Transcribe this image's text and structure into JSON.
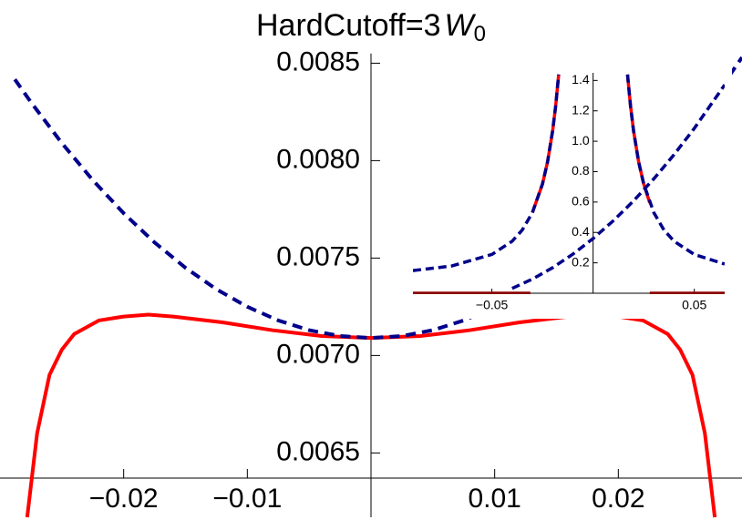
{
  "chart_data": [
    {
      "type": "line",
      "title": {
        "text": "HardCutoff=3",
        "symbol": "W",
        "subscript": "0"
      },
      "xlim": [
        -0.03,
        0.03
      ],
      "ylim": [
        0.00617,
        0.00855
      ],
      "xticks": [
        {
          "value": -0.02,
          "label": "−0.02"
        },
        {
          "value": -0.01,
          "label": "−0.01"
        },
        0.01,
        0.02
      ],
      "yticks": [
        0.0065,
        {
          "value": 0.007,
          "label": "0.0070"
        },
        0.0075,
        {
          "value": 0.008,
          "label": "0.0080"
        },
        0.0085
      ],
      "series": [
        {
          "color": "#ff0000",
          "line_style": "solid",
          "x": [
            -0.0278,
            -0.027,
            -0.026,
            -0.025,
            -0.024,
            -0.022,
            -0.02,
            -0.018,
            -0.016,
            -0.012,
            -0.008,
            -0.004,
            0,
            0.004,
            0.008,
            0.012,
            0.016,
            0.018,
            0.02,
            0.022,
            0.024,
            0.025,
            0.026,
            0.027,
            0.0278
          ],
          "values": [
            0.00617,
            0.0066,
            0.0069,
            0.00703,
            0.00711,
            0.00718,
            0.0072,
            0.00721,
            0.0072,
            0.00717,
            0.00713,
            0.0071,
            0.00709,
            0.0071,
            0.00713,
            0.00717,
            0.0072,
            0.00721,
            0.0072,
            0.00718,
            0.00711,
            0.00703,
            0.0069,
            0.0066,
            0.00617
          ]
        },
        {
          "color": "#00008b",
          "line_style": "dashed",
          "x": [
            -0.0288,
            -0.0275,
            -0.025,
            -0.0225,
            -0.02,
            -0.0175,
            -0.015,
            -0.0125,
            -0.01,
            -0.0075,
            -0.005,
            -0.0025,
            0,
            0.0025,
            0.005,
            0.0075,
            0.01,
            0.0125,
            0.015,
            0.0175,
            0.02,
            0.0225,
            0.025,
            0.0275,
            0.03
          ],
          "values": [
            0.008417,
            0.0083,
            0.00809,
            0.0079,
            0.00773,
            0.00758,
            0.00745,
            0.00734,
            0.00725,
            0.00718,
            0.00713,
            0.0071,
            0.00709,
            0.0071,
            0.00713,
            0.00718,
            0.00725,
            0.00734,
            0.00745,
            0.00758,
            0.00773,
            0.0079,
            0.00809,
            0.0083,
            0.00853
          ]
        }
      ]
    },
    {
      "type": "line",
      "xlim": [
        -0.089,
        0.065
      ],
      "ylim": [
        0,
        1.45
      ],
      "xticks": [
        {
          "value": -0.05,
          "label": "−0.05"
        },
        0.05
      ],
      "yticks": [
        0.2,
        0.4,
        0.6,
        0.8,
        {
          "value": 1,
          "label": "1.0"
        },
        1.2,
        1.4
      ],
      "series": [
        {
          "color": "#8b0000",
          "line_style": "solid",
          "x": [
            -0.089,
            -0.031,
            0,
            0.028,
            0.065
          ],
          "values": [
            0,
            0,
            null,
            0,
            0
          ]
        },
        {
          "color": "#ff0000",
          "line_style": "solid",
          "x": [
            -0.03,
            -0.025,
            -0.0225,
            -0.02,
            -0.0185,
            -0.017,
            0,
            0.017,
            0.0185,
            0.02,
            0.0225,
            0.025,
            0.028
          ],
          "values": [
            0.53,
            0.719,
            0.864,
            1.0675,
            1.231,
            1.439,
            null,
            1.439,
            1.231,
            1.0675,
            0.864,
            0.719,
            0.594
          ]
        },
        {
          "color": "#00008b",
          "line_style": "dashed",
          "x": [
            -0.089,
            -0.07,
            -0.05,
            -0.04,
            -0.035,
            -0.03,
            -0.025,
            -0.0225,
            -0.02,
            -0.0185,
            -0.017,
            0,
            0.017,
            0.0185,
            0.02,
            0.0225,
            0.025,
            0.03,
            0.035,
            0.04,
            0.05,
            0.065
          ],
          "values": [
            0.149,
            0.179,
            0.255,
            0.342,
            0.416,
            0.53,
            0.719,
            0.864,
            1.0675,
            1.231,
            1.439,
            null,
            1.439,
            1.231,
            1.0675,
            0.864,
            0.719,
            0.53,
            0.416,
            0.342,
            0.255,
            0.192
          ]
        },
        {
          "color": "#00008b",
          "line_style": "dashed",
          "x": [
            -0.04,
            -0.03,
            -0.02,
            -0.01,
            0,
            0.01,
            0.02,
            0.03,
            0.04,
            0.05,
            0.065
          ],
          "values": [
            0.032,
            0.093,
            0.168,
            0.257,
            0.36,
            0.477,
            0.608,
            0.753,
            0.912,
            1.085,
            1.371
          ]
        }
      ]
    }
  ]
}
